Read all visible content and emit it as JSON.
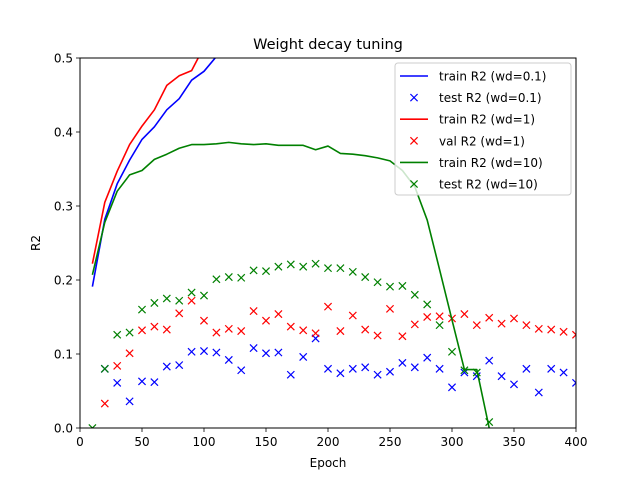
{
  "chart_data": {
    "type": "line",
    "title": "Weight decay tuning",
    "xlabel": "Epoch",
    "ylabel": "R2",
    "xlim": [
      0,
      400
    ],
    "ylim": [
      0,
      0.5
    ],
    "xticks": [
      0,
      50,
      100,
      150,
      200,
      250,
      300,
      350,
      400
    ],
    "yticks": [
      0.0,
      0.1,
      0.2,
      0.3,
      0.4,
      0.5
    ],
    "grid": false,
    "legend_position": "top-right",
    "series": [
      {
        "name": "train R2 (wd=0.1)",
        "kind": "line",
        "color": "#0000ff",
        "x": [
          10,
          20,
          30,
          40,
          50,
          60,
          70,
          80,
          90,
          100,
          110,
          120
        ],
        "y": [
          0.191,
          0.282,
          0.33,
          0.362,
          0.39,
          0.407,
          0.43,
          0.445,
          0.47,
          0.482,
          0.502,
          0.522
        ]
      },
      {
        "name": "test R2 (wd=0.1)",
        "kind": "scatter",
        "color": "#0000ff",
        "x": [
          20,
          30,
          40,
          50,
          60,
          70,
          80,
          90,
          100,
          110,
          120,
          130,
          140,
          150,
          160,
          170,
          180,
          190,
          200,
          210,
          220,
          230,
          240,
          250,
          260,
          270,
          280,
          290,
          300,
          310,
          320,
          330,
          340,
          350,
          360,
          370,
          380,
          390,
          400
        ],
        "y": [
          0.08,
          0.061,
          0.036,
          0.063,
          0.062,
          0.083,
          0.085,
          0.103,
          0.104,
          0.102,
          0.092,
          0.078,
          0.108,
          0.101,
          0.102,
          0.072,
          0.096,
          0.121,
          0.08,
          0.074,
          0.08,
          0.082,
          0.072,
          0.076,
          0.088,
          0.082,
          0.095,
          0.08,
          0.055,
          0.075,
          0.07,
          0.091,
          0.07,
          0.059,
          0.08,
          0.048,
          0.08,
          0.075,
          0.061
        ]
      },
      {
        "name": "train R2 (wd=1)",
        "kind": "line",
        "color": "#ff0000",
        "x": [
          10,
          20,
          30,
          40,
          50,
          60,
          70,
          80,
          90,
          100
        ],
        "y": [
          0.222,
          0.305,
          0.347,
          0.383,
          0.408,
          0.43,
          0.463,
          0.476,
          0.483,
          0.515
        ]
      },
      {
        "name": "val R2 (wd=1)",
        "kind": "scatter",
        "color": "#ff0000",
        "x": [
          20,
          30,
          40,
          50,
          60,
          70,
          80,
          90,
          100,
          110,
          120,
          130,
          140,
          150,
          160,
          170,
          180,
          190,
          200,
          210,
          220,
          230,
          240,
          250,
          260,
          270,
          280,
          290,
          300,
          310,
          320,
          330,
          340,
          350,
          360,
          370,
          380,
          390,
          400
        ],
        "y": [
          0.033,
          0.084,
          0.101,
          0.132,
          0.137,
          0.133,
          0.155,
          0.172,
          0.145,
          0.129,
          0.134,
          0.131,
          0.158,
          0.145,
          0.154,
          0.137,
          0.132,
          0.128,
          0.164,
          0.131,
          0.152,
          0.133,
          0.125,
          0.161,
          0.124,
          0.14,
          0.15,
          0.151,
          0.148,
          0.154,
          0.139,
          0.149,
          0.141,
          0.148,
          0.139,
          0.134,
          0.133,
          0.13,
          0.126
        ]
      },
      {
        "name": "train R2 (wd=10)",
        "kind": "line",
        "color": "#008000",
        "x": [
          10,
          20,
          30,
          40,
          50,
          60,
          70,
          80,
          90,
          100,
          110,
          120,
          130,
          140,
          150,
          160,
          170,
          180,
          190,
          200,
          210,
          220,
          230,
          240,
          250,
          260,
          270,
          280,
          290,
          300,
          310,
          320,
          330
        ],
        "y": [
          0.207,
          0.278,
          0.32,
          0.342,
          0.348,
          0.363,
          0.37,
          0.378,
          0.383,
          0.383,
          0.384,
          0.386,
          0.384,
          0.383,
          0.384,
          0.382,
          0.382,
          0.382,
          0.376,
          0.381,
          0.371,
          0.37,
          0.368,
          0.365,
          0.361,
          0.348,
          0.326,
          0.281,
          0.214,
          0.146,
          0.079,
          0.079,
          0.0
        ]
      },
      {
        "name": "test R2 (wd=10)",
        "kind": "scatter",
        "color": "#008000",
        "x": [
          10,
          20,
          30,
          40,
          50,
          60,
          70,
          80,
          90,
          100,
          110,
          120,
          130,
          140,
          150,
          160,
          170,
          180,
          190,
          200,
          210,
          220,
          230,
          240,
          250,
          260,
          270,
          280,
          290,
          300,
          310,
          320,
          330
        ],
        "y": [
          0.0,
          0.08,
          0.126,
          0.129,
          0.16,
          0.169,
          0.175,
          0.172,
          0.183,
          0.179,
          0.201,
          0.204,
          0.203,
          0.213,
          0.212,
          0.218,
          0.221,
          0.218,
          0.222,
          0.216,
          0.216,
          0.211,
          0.204,
          0.197,
          0.191,
          0.192,
          0.18,
          0.167,
          0.139,
          0.103,
          0.078,
          0.075,
          0.008
        ]
      }
    ]
  }
}
